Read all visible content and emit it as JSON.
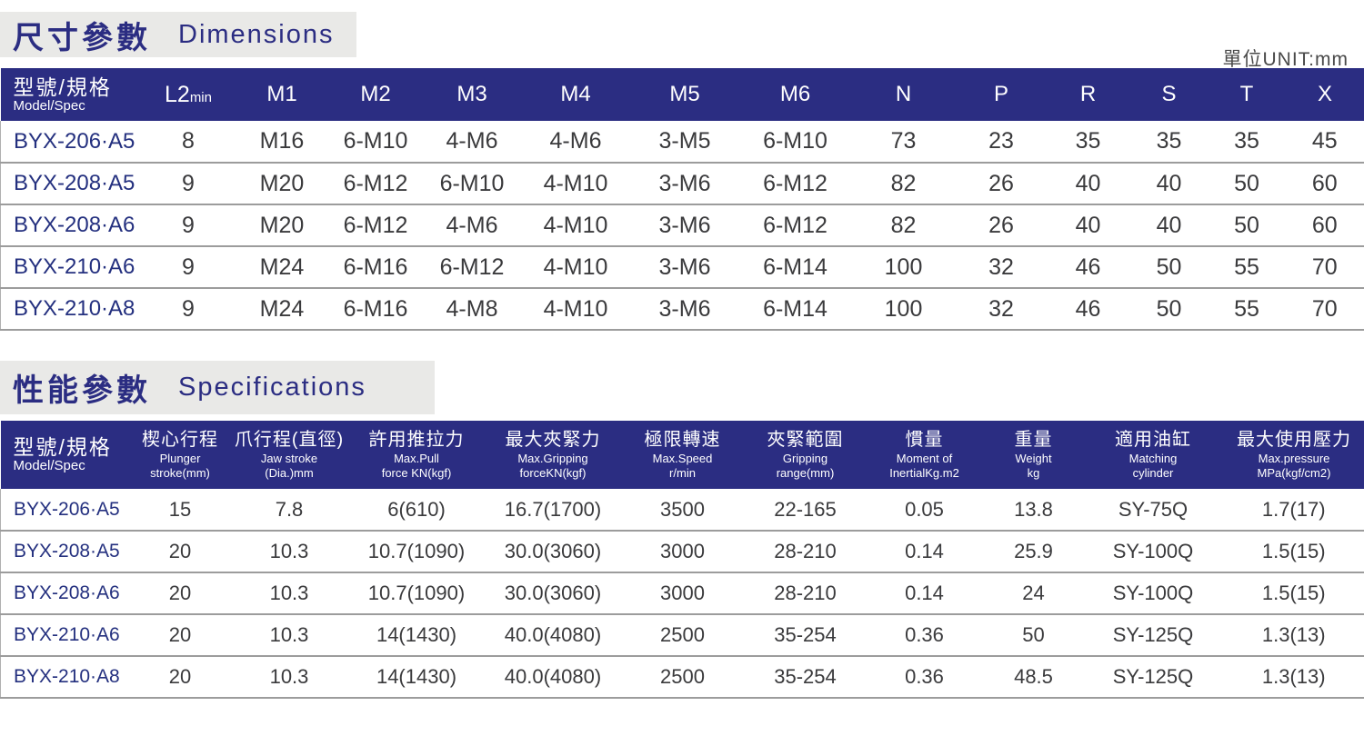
{
  "page": {
    "unit_label": "單位UNIT:mm"
  },
  "section_dimensions": {
    "title_zh": "尺寸參數",
    "title_en": "Dimensions",
    "model_header_zh": "型號/規格",
    "model_header_en": "Model/Spec",
    "l2_main": "L2",
    "l2_sub": "min",
    "columns": [
      "M1",
      "M2",
      "M3",
      "M4",
      "M5",
      "M6",
      "N",
      "P",
      "R",
      "S",
      "T",
      "X"
    ],
    "rows": [
      {
        "model": "BYX-206·A5",
        "values": [
          "8",
          "M16",
          "6-M10",
          "4-M6",
          "4-M6",
          "3-M5",
          "6-M10",
          "73",
          "23",
          "35",
          "35",
          "35",
          "45"
        ]
      },
      {
        "model": "BYX-208·A5",
        "values": [
          "9",
          "M20",
          "6-M12",
          "6-M10",
          "4-M10",
          "3-M6",
          "6-M12",
          "82",
          "26",
          "40",
          "40",
          "50",
          "60"
        ]
      },
      {
        "model": "BYX-208·A6",
        "values": [
          "9",
          "M20",
          "6-M12",
          "4-M6",
          "4-M10",
          "3-M6",
          "6-M12",
          "82",
          "26",
          "40",
          "40",
          "50",
          "60"
        ]
      },
      {
        "model": "BYX-210·A6",
        "values": [
          "9",
          "M24",
          "6-M16",
          "6-M12",
          "4-M10",
          "3-M6",
          "6-M14",
          "100",
          "32",
          "46",
          "50",
          "55",
          "70"
        ]
      },
      {
        "model": "BYX-210·A8",
        "values": [
          "9",
          "M24",
          "6-M16",
          "4-M8",
          "4-M10",
          "3-M6",
          "6-M14",
          "100",
          "32",
          "46",
          "50",
          "55",
          "70"
        ]
      }
    ]
  },
  "section_specs": {
    "title_zh": "性能參數",
    "title_en": "Specifications",
    "model_header_zh": "型號/規格",
    "model_header_en": "Model/Spec",
    "columns": [
      {
        "zh": "楔心行程",
        "en": "Plunger\nstroke(mm)"
      },
      {
        "zh": "爪行程(直徑)",
        "en": "Jaw stroke\n(Dia.)mm"
      },
      {
        "zh": "許用推拉力",
        "en": "Max.Pull\nforce KN(kgf)"
      },
      {
        "zh": "最大夾緊力",
        "en": "Max.Gripping\nforceKN(kgf)"
      },
      {
        "zh": "極限轉速",
        "en": "Max.Speed\nr/min"
      },
      {
        "zh": "夾緊範圍",
        "en": "Gripping\nrange(mm)"
      },
      {
        "zh": "慣量",
        "en": "Moment of\nInertialKg.m2"
      },
      {
        "zh": "重量",
        "en": "Weight\nkg"
      },
      {
        "zh": "適用油缸",
        "en": "Matching\ncylinder"
      },
      {
        "zh": "最大使用壓力",
        "en": "Max.pressure\nMPa(kgf/cm2)"
      }
    ],
    "rows": [
      {
        "model": "BYX-206·A5",
        "values": [
          "15",
          "7.8",
          "6(610)",
          "16.7(1700)",
          "3500",
          "22-165",
          "0.05",
          "13.8",
          "SY-75Q",
          "1.7(17)"
        ]
      },
      {
        "model": "BYX-208·A5",
        "values": [
          "20",
          "10.3",
          "10.7(1090)",
          "30.0(3060)",
          "3000",
          "28-210",
          "0.14",
          "25.9",
          "SY-100Q",
          "1.5(15)"
        ]
      },
      {
        "model": "BYX-208·A6",
        "values": [
          "20",
          "10.3",
          "10.7(1090)",
          "30.0(3060)",
          "3000",
          "28-210",
          "0.14",
          "24",
          "SY-100Q",
          "1.5(15)"
        ]
      },
      {
        "model": "BYX-210·A6",
        "values": [
          "20",
          "10.3",
          "14(1430)",
          "40.0(4080)",
          "2500",
          "35-254",
          "0.36",
          "50",
          "SY-125Q",
          "1.3(13)"
        ]
      },
      {
        "model": "BYX-210·A8",
        "values": [
          "20",
          "10.3",
          "14(1430)",
          "40.0(4080)",
          "2500",
          "35-254",
          "0.36",
          "48.5",
          "SY-125Q",
          "1.3(13)"
        ]
      }
    ]
  },
  "colors": {
    "header_bg": "#2b2d82",
    "title_text": "#2b2d82",
    "title_bg": "#e9e9e7",
    "model_text": "#24307f",
    "body_text": "#3a3a3c",
    "grid_line": "#9c9c9c"
  }
}
